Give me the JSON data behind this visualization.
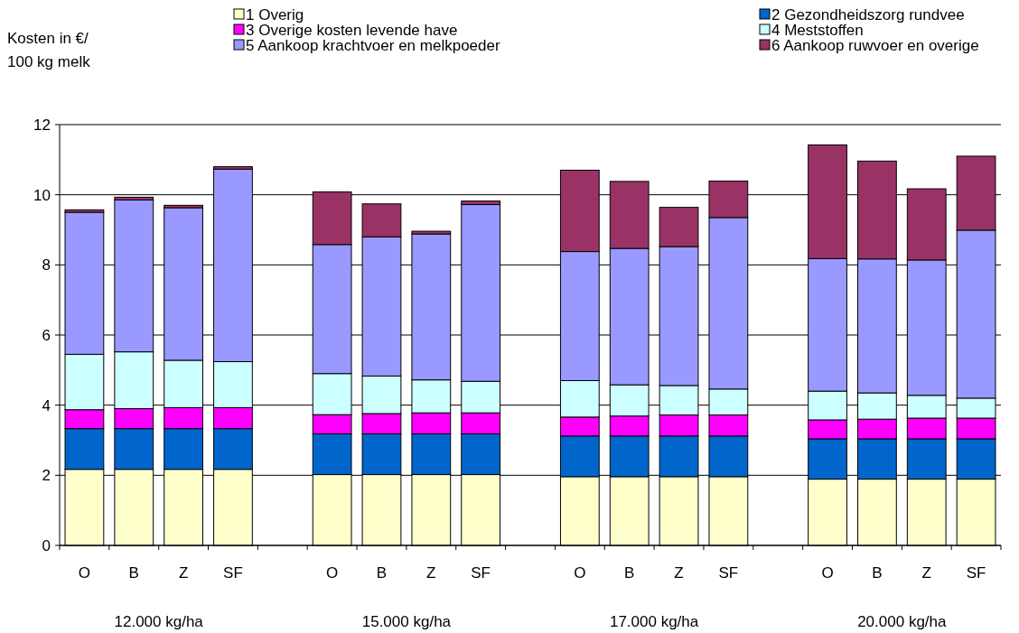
{
  "chart_data": {
    "type": "bar",
    "stacked": true,
    "ylabel": "Kosten in €/\n100 kg melk",
    "categories": [
      "O",
      "B",
      "Z",
      "SF",
      null,
      "O",
      "B",
      "Z",
      "SF",
      null,
      "O",
      "B",
      "Z",
      "SF",
      null,
      "O",
      "B",
      "Z",
      "SF"
    ],
    "series": [
      {
        "name": "1 Overig",
        "color": "#ffffcc",
        "values": [
          2.17,
          2.17,
          2.17,
          2.17,
          null,
          2.02,
          2.02,
          2.02,
          2.02,
          null,
          1.96,
          1.96,
          1.96,
          1.96,
          null,
          1.89,
          1.89,
          1.89,
          1.89
        ]
      },
      {
        "name": "2 Gezondheidszorg rundvee",
        "color": "#0066cc",
        "values": [
          1.16,
          1.16,
          1.16,
          1.16,
          null,
          1.16,
          1.16,
          1.16,
          1.16,
          null,
          1.16,
          1.16,
          1.16,
          1.16,
          null,
          1.15,
          1.15,
          1.15,
          1.15
        ]
      },
      {
        "name": "3 Overige kosten levende have",
        "color": "#ff00ff",
        "values": [
          0.54,
          0.57,
          0.6,
          0.6,
          null,
          0.55,
          0.58,
          0.6,
          0.6,
          null,
          0.54,
          0.57,
          0.6,
          0.6,
          null,
          0.54,
          0.56,
          0.59,
          0.59
        ]
      },
      {
        "name": "4 Meststoffen",
        "color": "#ccffff",
        "values": [
          1.58,
          1.62,
          1.35,
          1.31,
          null,
          1.17,
          1.07,
          0.94,
          0.9,
          null,
          1.04,
          0.89,
          0.84,
          0.74,
          null,
          0.82,
          0.75,
          0.65,
          0.57
        ]
      },
      {
        "name": "5 Aankoop krachtvoer en melkpoeder",
        "color": "#9999ff",
        "values": [
          4.05,
          4.33,
          4.35,
          5.49,
          null,
          3.68,
          3.97,
          4.16,
          5.04,
          null,
          3.68,
          3.89,
          3.96,
          4.89,
          null,
          3.78,
          3.82,
          3.86,
          4.79
        ]
      },
      {
        "name": "6 Aankoop ruwvoer en overige",
        "color": "#993366",
        "values": [
          0.07,
          0.08,
          0.07,
          0.07,
          null,
          1.5,
          0.94,
          0.08,
          0.1,
          null,
          2.32,
          1.91,
          1.12,
          1.04,
          null,
          3.24,
          2.79,
          2.03,
          2.11
        ]
      }
    ],
    "ylim": [
      0,
      12
    ],
    "yticks": [
      0,
      2,
      4,
      6,
      8,
      10,
      12
    ],
    "grid": "y",
    "legend": "top",
    "annotations": [
      "12.000 kg/ha",
      "15.000 kg/ha",
      "17.000 kg/ha",
      "20.000 kg/ha"
    ]
  }
}
